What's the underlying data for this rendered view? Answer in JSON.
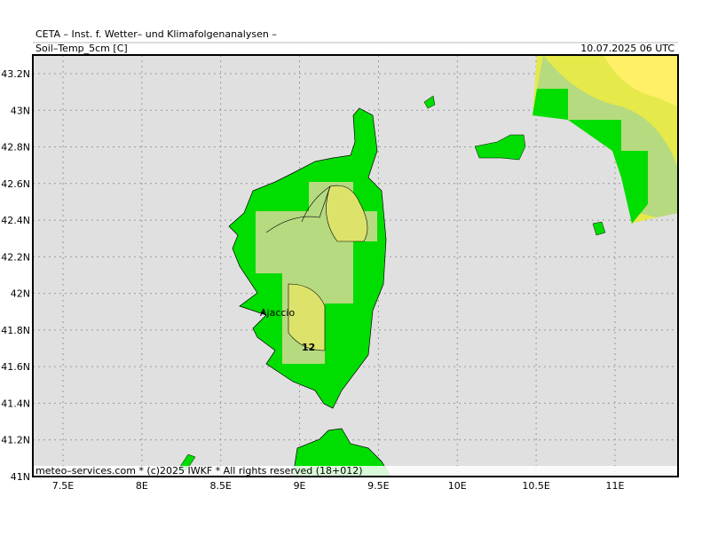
{
  "header": {
    "title": "CETA – Inst. f. Wetter– und Klimafolgenanalysen –",
    "variable": "Soil–Temp_5cm [C]",
    "time": "10.07.2025 06 UTC"
  },
  "map": {
    "lon_ticks": [
      "7.5E",
      "8E",
      "8.5E",
      "9E",
      "9.5E",
      "10E",
      "10.5E",
      "11E"
    ],
    "lat_ticks": [
      "43.2N",
      "43N",
      "42.8N",
      "42.6N",
      "42.4N",
      "42.2N",
      "42N",
      "41.8N",
      "41.6N",
      "41.4N",
      "41.2N",
      "41N"
    ],
    "place": "Ajaccio",
    "contour_label": "12"
  },
  "footer": "meteo–services.com * (c)2025 IWKF * All rights reserved (18+012)"
}
